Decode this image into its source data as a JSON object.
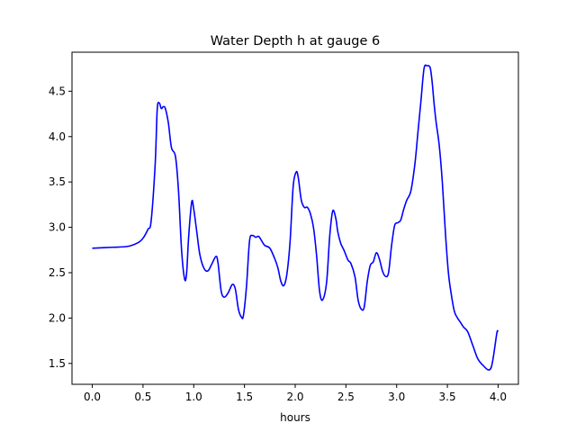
{
  "chart_data": {
    "type": "line",
    "title": "Water Depth h at gauge 6",
    "xlabel": "hours",
    "ylabel": "",
    "xlim": [
      -0.2,
      4.2
    ],
    "ylim": [
      1.27,
      4.93
    ],
    "xticks": [
      0.0,
      0.5,
      1.0,
      1.5,
      2.0,
      2.5,
      3.0,
      3.5,
      4.0
    ],
    "xtick_labels": [
      "0.0",
      "0.5",
      "1.0",
      "1.5",
      "2.0",
      "2.5",
      "3.0",
      "3.5",
      "4.0"
    ],
    "yticks": [
      1.5,
      2.0,
      2.5,
      3.0,
      3.5,
      4.0,
      4.5
    ],
    "ytick_labels": [
      "1.5",
      "2.0",
      "2.5",
      "3.0",
      "3.5",
      "4.0",
      "4.5"
    ],
    "grid": false,
    "series": [
      {
        "name": "h",
        "color": "#0000ff",
        "x": [
          0.0,
          0.2,
          0.35,
          0.45,
          0.5,
          0.55,
          0.58,
          0.62,
          0.64,
          0.66,
          0.68,
          0.7,
          0.72,
          0.75,
          0.78,
          0.82,
          0.85,
          0.88,
          0.91,
          0.93,
          0.95,
          0.98,
          1.0,
          1.03,
          1.06,
          1.1,
          1.14,
          1.18,
          1.22,
          1.24,
          1.27,
          1.3,
          1.34,
          1.38,
          1.41,
          1.44,
          1.47,
          1.49,
          1.52,
          1.55,
          1.58,
          1.61,
          1.64,
          1.67,
          1.7,
          1.75,
          1.8,
          1.83,
          1.86,
          1.89,
          1.92,
          1.95,
          1.98,
          2.01,
          2.03,
          2.06,
          2.09,
          2.12,
          2.15,
          2.18,
          2.21,
          2.24,
          2.27,
          2.31,
          2.34,
          2.37,
          2.4,
          2.42,
          2.45,
          2.48,
          2.52,
          2.55,
          2.59,
          2.62,
          2.65,
          2.68,
          2.71,
          2.74,
          2.77,
          2.8,
          2.83,
          2.86,
          2.89,
          2.92,
          2.95,
          2.98,
          3.01,
          3.04,
          3.07,
          3.1,
          3.14,
          3.18,
          3.21,
          3.24,
          3.27,
          3.3,
          3.33,
          3.35,
          3.37,
          3.39,
          3.42,
          3.45,
          3.48,
          3.51,
          3.54,
          3.57,
          3.6,
          3.63,
          3.66,
          3.7,
          3.75,
          3.8,
          3.85,
          3.9,
          3.93,
          3.95,
          3.97,
          3.99,
          4.0
        ],
        "y": [
          2.77,
          2.78,
          2.79,
          2.83,
          2.88,
          2.98,
          3.07,
          3.7,
          4.3,
          4.37,
          4.31,
          4.33,
          4.31,
          4.15,
          3.88,
          3.78,
          3.4,
          2.75,
          2.43,
          2.5,
          2.9,
          3.28,
          3.2,
          2.95,
          2.7,
          2.55,
          2.52,
          2.6,
          2.68,
          2.6,
          2.3,
          2.23,
          2.28,
          2.37,
          2.32,
          2.1,
          2.01,
          2.03,
          2.35,
          2.85,
          2.91,
          2.89,
          2.9,
          2.85,
          2.8,
          2.77,
          2.65,
          2.55,
          2.4,
          2.36,
          2.5,
          2.85,
          3.45,
          3.61,
          3.55,
          3.3,
          3.22,
          3.22,
          3.15,
          3.0,
          2.7,
          2.3,
          2.2,
          2.4,
          2.9,
          3.18,
          3.1,
          2.95,
          2.82,
          2.75,
          2.64,
          2.6,
          2.45,
          2.2,
          2.1,
          2.12,
          2.4,
          2.58,
          2.62,
          2.72,
          2.65,
          2.52,
          2.46,
          2.5,
          2.8,
          3.02,
          3.05,
          3.08,
          3.2,
          3.3,
          3.4,
          3.7,
          4.05,
          4.4,
          4.75,
          4.78,
          4.76,
          4.6,
          4.35,
          4.15,
          3.9,
          3.5,
          2.95,
          2.5,
          2.25,
          2.07,
          2.0,
          1.95,
          1.9,
          1.85,
          1.7,
          1.55,
          1.48,
          1.43,
          1.45,
          1.55,
          1.7,
          1.85,
          1.85
        ]
      }
    ]
  }
}
